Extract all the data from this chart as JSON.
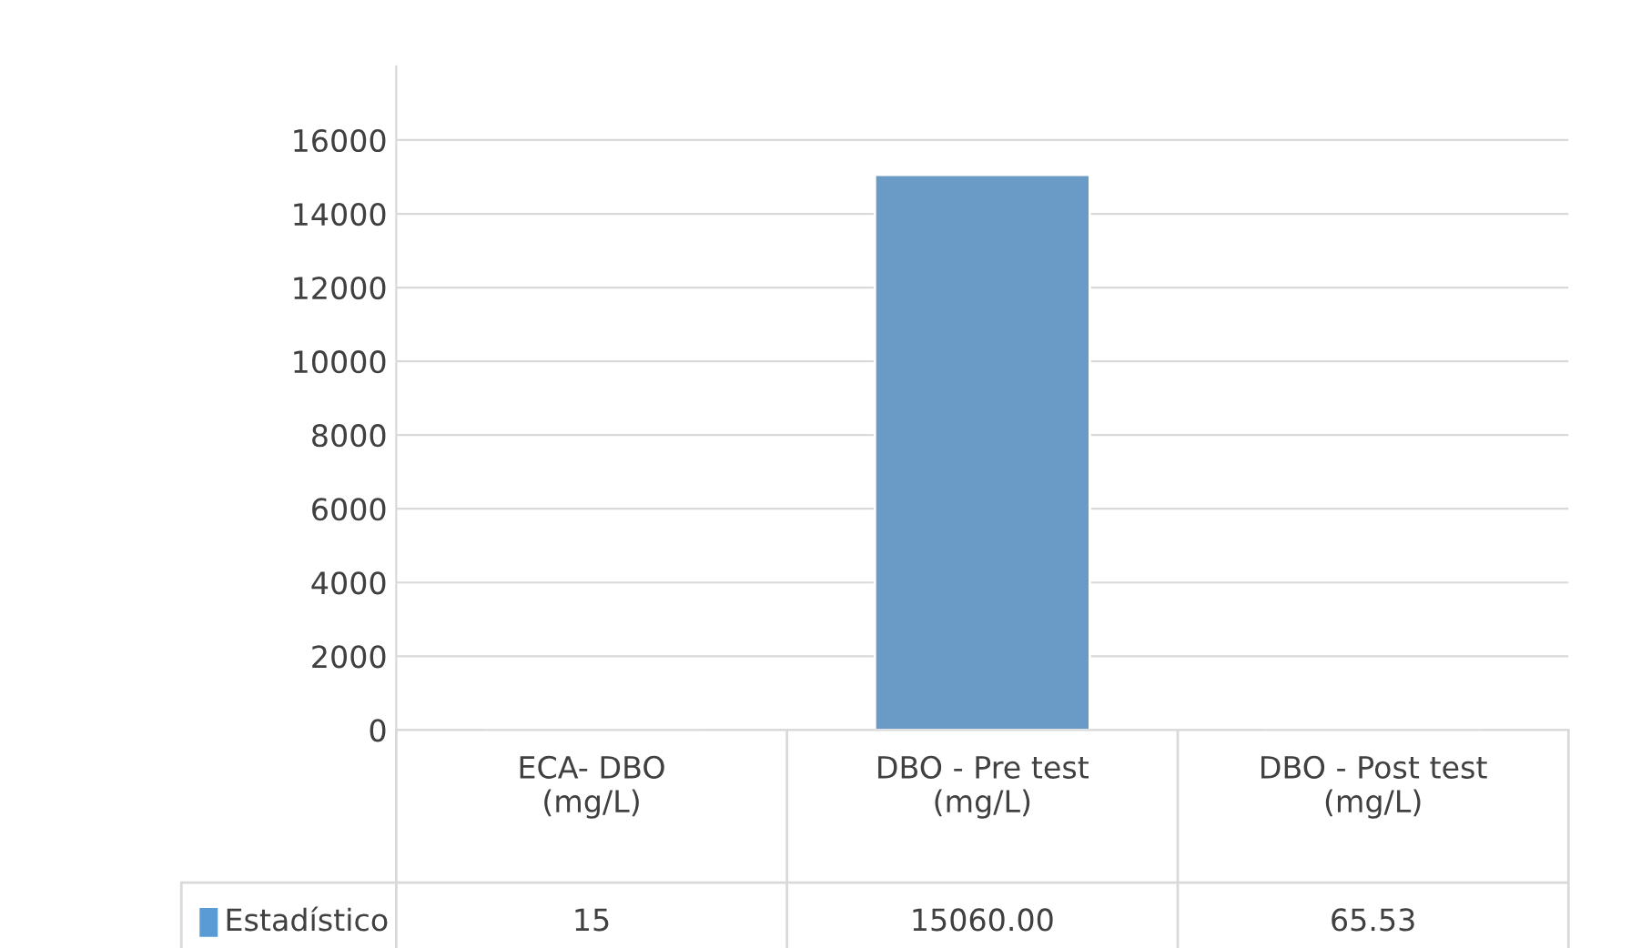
{
  "chart_data": {
    "type": "bar",
    "categories": [
      "ECA- DBO\n(mg/L)",
      "DBO - Pre test\n(mg/L)",
      "DBO - Post test\n(mg/L)"
    ],
    "series": [
      {
        "name": "Estadístico",
        "color": "#5b9bd5",
        "colors": [
          "#1f2a38",
          "#5b9bd5",
          "#41719c"
        ],
        "values": [
          15,
          15060,
          65.53
        ],
        "value_labels": [
          "15",
          "15060.00",
          "65.53"
        ]
      }
    ],
    "ylim": [
      0,
      18000
    ],
    "yticks": [
      0,
      2000,
      4000,
      6000,
      8000,
      10000,
      12000,
      14000,
      16000
    ],
    "grid": "y",
    "legend": "bottom"
  }
}
